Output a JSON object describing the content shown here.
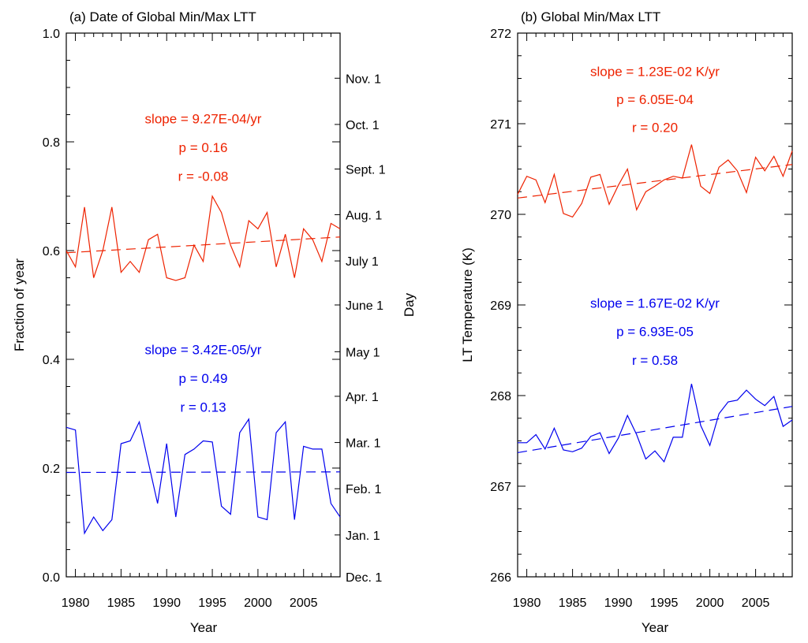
{
  "colors": {
    "red": "#ee2200",
    "blue": "#0000ee",
    "axis": "#000000"
  },
  "chart_data": [
    {
      "type": "line",
      "title": "(a) Date of Global Min/Max LTT",
      "xlabel": "Year",
      "ylabel": "Fraction of year",
      "y2label": "Day",
      "xlim": [
        1979,
        2009
      ],
      "ylim": [
        0.0,
        1.0
      ],
      "xticks": [
        1980,
        1985,
        1990,
        1995,
        2000,
        2005
      ],
      "yticks": [
        "0.0",
        "0.2",
        "0.4",
        "0.6",
        "0.8",
        "1.0"
      ],
      "y2ticks": [
        {
          "label": "Dec. 1",
          "value": 0.0
        },
        {
          "label": "Jan. 1",
          "value": 0.077
        },
        {
          "label": "Feb. 1",
          "value": 0.162
        },
        {
          "label": "Mar. 1",
          "value": 0.247
        },
        {
          "label": "Apr. 1",
          "value": 0.332
        },
        {
          "label": "May 1",
          "value": 0.414
        },
        {
          "label": "June 1",
          "value": 0.5
        },
        {
          "label": "July 1",
          "value": 0.581
        },
        {
          "label": "Aug. 1",
          "value": 0.666
        },
        {
          "label": "Sept. 1",
          "value": 0.75
        },
        {
          "label": "Oct. 1",
          "value": 0.832
        },
        {
          "label": "Nov. 1",
          "value": 0.917
        }
      ],
      "x": [
        1979,
        1980,
        1981,
        1982,
        1983,
        1984,
        1985,
        1986,
        1987,
        1988,
        1989,
        1990,
        1991,
        1992,
        1993,
        1994,
        1995,
        1996,
        1997,
        1998,
        1999,
        2000,
        2001,
        2002,
        2003,
        2004,
        2005,
        2006,
        2007,
        2008,
        2009
      ],
      "series": [
        {
          "name": "max",
          "color": "red",
          "values": [
            0.6,
            0.57,
            0.68,
            0.55,
            0.6,
            0.68,
            0.56,
            0.58,
            0.56,
            0.62,
            0.63,
            0.55,
            0.545,
            0.55,
            0.61,
            0.58,
            0.7,
            0.67,
            0.61,
            0.57,
            0.655,
            0.64,
            0.67,
            0.57,
            0.63,
            0.55,
            0.64,
            0.62,
            0.58,
            0.65,
            0.64
          ],
          "trend": [
            0.596,
            0.625
          ],
          "annotations": [
            "slope = 9.27E-04/yr",
            "p = 0.16",
            "r = -0.08"
          ],
          "annotation_y": [
            0.843,
            0.79,
            0.737
          ]
        },
        {
          "name": "min",
          "color": "blue",
          "values": [
            0.275,
            0.27,
            0.08,
            0.11,
            0.085,
            0.105,
            0.245,
            0.25,
            0.285,
            0.21,
            0.135,
            0.245,
            0.11,
            0.225,
            0.235,
            0.25,
            0.248,
            0.13,
            0.115,
            0.265,
            0.29,
            0.11,
            0.105,
            0.265,
            0.285,
            0.105,
            0.24,
            0.235,
            0.235,
            0.135,
            0.11
          ],
          "trend": [
            0.192,
            0.193
          ],
          "annotations": [
            "slope = 3.42E-05/yr",
            "p = 0.49",
            "r = 0.13"
          ],
          "annotation_y": [
            0.418,
            0.365,
            0.312
          ]
        }
      ]
    },
    {
      "type": "line",
      "title": "(b) Global Min/Max LTT",
      "xlabel": "Year",
      "ylabel": "LT Temperature (K)",
      "xlim": [
        1979,
        2009
      ],
      "ylim": [
        266,
        272
      ],
      "xticks": [
        1980,
        1985,
        1990,
        1995,
        2000,
        2005
      ],
      "yticks": [
        "266",
        "267",
        "268",
        "269",
        "270",
        "271",
        "272"
      ],
      "x": [
        1979,
        1980,
        1981,
        1982,
        1983,
        1984,
        1985,
        1986,
        1987,
        1988,
        1989,
        1990,
        1991,
        1992,
        1993,
        1994,
        1995,
        1996,
        1997,
        1998,
        1999,
        2000,
        2001,
        2002,
        2003,
        2004,
        2005,
        2006,
        2007,
        2008,
        2009
      ],
      "series": [
        {
          "name": "max",
          "color": "red",
          "values": [
            270.22,
            270.42,
            270.38,
            270.13,
            270.44,
            270.01,
            269.97,
            270.12,
            270.41,
            270.44,
            270.11,
            270.32,
            270.5,
            270.05,
            270.25,
            270.31,
            270.38,
            270.42,
            270.4,
            270.77,
            270.31,
            270.23,
            270.52,
            270.6,
            270.48,
            270.24,
            270.63,
            270.48,
            270.64,
            270.42,
            270.7
          ],
          "trend": [
            270.18,
            270.55
          ],
          "annotations": [
            "slope = 1.23E-02 K/yr",
            "p = 6.05E-04",
            "r = 0.20"
          ],
          "annotation_y": [
            271.58,
            271.27,
            270.96
          ]
        },
        {
          "name": "min",
          "color": "blue",
          "values": [
            267.48,
            267.48,
            267.57,
            267.41,
            267.64,
            267.4,
            267.38,
            267.42,
            267.55,
            267.59,
            267.36,
            267.53,
            267.78,
            267.57,
            267.3,
            267.39,
            267.27,
            267.54,
            267.54,
            268.13,
            267.67,
            267.45,
            267.8,
            267.93,
            267.95,
            268.06,
            267.96,
            267.89,
            267.99,
            267.66,
            267.73
          ],
          "trend": [
            267.37,
            267.88
          ],
          "annotations": [
            "slope = 1.67E-02 K/yr",
            "p = 6.93E-05",
            "r = 0.58"
          ],
          "annotation_y": [
            269.02,
            268.71,
            268.39
          ]
        }
      ]
    }
  ]
}
